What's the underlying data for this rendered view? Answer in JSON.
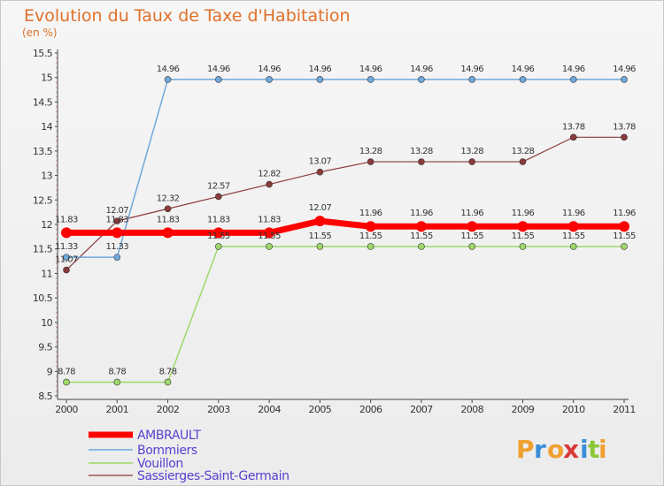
{
  "chart_data": {
    "type": "line",
    "title": "Evolution du Taux de Taxe d'Habitation",
    "subtitle": "(en %)",
    "x": [
      "2000",
      "2001",
      "2002",
      "2003",
      "2004",
      "2005",
      "2006",
      "2007",
      "2008",
      "2009",
      "2010",
      "2011"
    ],
    "ylim": [
      8.5,
      15.5
    ],
    "yticks": [
      "8.5",
      "9",
      "9.5",
      "10",
      "10.5",
      "11",
      "11.5",
      "12",
      "12.5",
      "13",
      "13.5",
      "14",
      "14.5",
      "15",
      "15.5"
    ],
    "grid": false,
    "legend_position": "bottom-left",
    "series": [
      {
        "name": "AMBRAULT",
        "color": "#ff0000",
        "values": [
          11.83,
          11.83,
          11.83,
          11.83,
          11.83,
          12.07,
          11.96,
          11.96,
          11.96,
          11.96,
          11.96,
          11.96
        ],
        "labels": [
          "11.83",
          "11.83",
          "11.83",
          "11.83",
          "11.83",
          "12.07",
          "11.96",
          "11.96",
          "11.96",
          "11.96",
          "11.96",
          "11.96"
        ]
      },
      {
        "name": "Bommiers",
        "color": "#6fa8dc",
        "values": [
          11.33,
          11.33,
          14.96,
          14.96,
          14.96,
          14.96,
          14.96,
          14.96,
          14.96,
          14.96,
          14.96,
          14.96
        ],
        "labels": [
          "11.33",
          "11.33",
          "14.96",
          "14.96",
          "14.96",
          "14.96",
          "14.96",
          "14.96",
          "14.96",
          "14.96",
          "14.96",
          "14.96"
        ]
      },
      {
        "name": "Vouillon",
        "color": "#9ed86a",
        "values": [
          8.78,
          8.78,
          8.78,
          11.55,
          11.55,
          11.55,
          11.55,
          11.55,
          11.55,
          11.55,
          11.55,
          11.55
        ],
        "labels": [
          "8.78",
          "8.78",
          "8.78",
          "11.55",
          "11.55",
          "11.55",
          "11.55",
          "11.55",
          "11.55",
          "11.55",
          "11.55",
          "11.55"
        ]
      },
      {
        "name": "Sassierges-Saint-Germain",
        "color": "#8b3a3a",
        "values": [
          11.07,
          12.07,
          12.32,
          12.57,
          12.82,
          13.07,
          13.28,
          13.28,
          13.28,
          13.28,
          13.78,
          13.78
        ],
        "labels": [
          "11.07",
          "12.07",
          "12.32",
          "12.57",
          "12.82",
          "13.07",
          "13.28",
          "13.28",
          "13.28",
          "13.28",
          "13.78",
          "13.78"
        ]
      }
    ]
  },
  "logo": {
    "letters": [
      "P",
      "r",
      "o",
      "x",
      "i",
      "t",
      "i"
    ],
    "colors": [
      "#f0a030",
      "#3a8fd8",
      "#f0a030",
      "#d83a3a",
      "#3a8fd8",
      "#8ac83a",
      "#f0a030"
    ]
  }
}
